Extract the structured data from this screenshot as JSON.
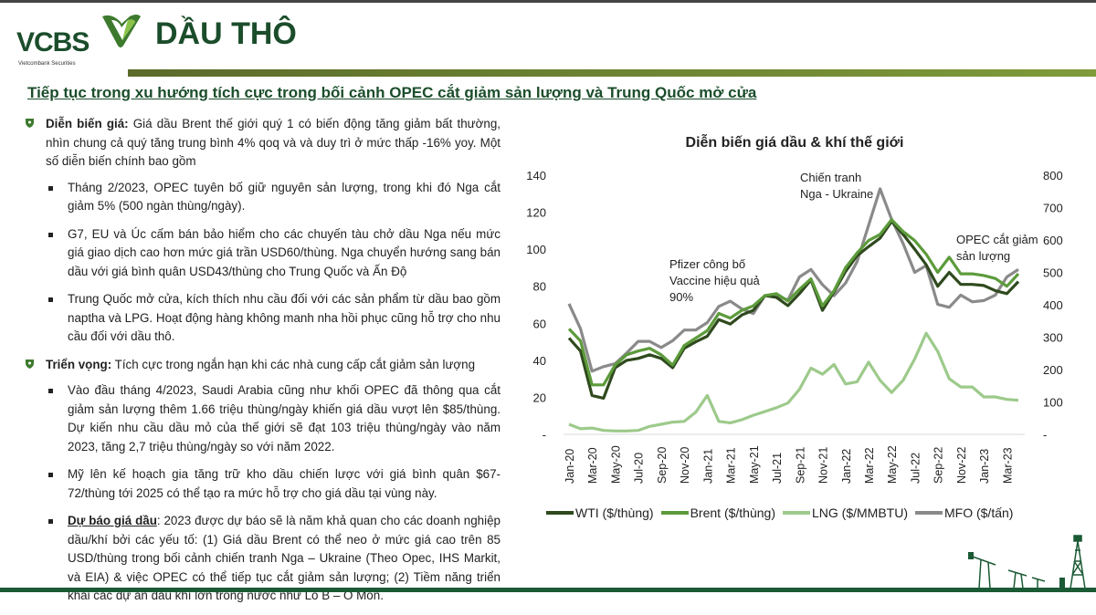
{
  "header": {
    "logo_text": "VCBS",
    "logo_subtext": "Vietcombank Securities",
    "title": "DẦU THÔ",
    "subtitle": "Tiếp tục trong xu hướng tích cực trong bối cảnh OPEC cắt giảm sản lượng và Trung Quốc mở cửa"
  },
  "content": {
    "section1": {
      "label": "Diễn biến giá:",
      "text": " Giá dầu Brent thế giới quý 1 có biến động tăng giảm bất thường, nhìn chung cả quý tăng trung bình 4% qoq và và duy trì ở mức thấp -16% yoy. Một số diễn biến chính bao gồm",
      "bullets": [
        "Tháng 2/2023, OPEC tuyên bố giữ nguyên sản lượng, trong khi đó Nga cắt giảm 5% (500 ngàn thùng/ngày).",
        "G7, EU và Úc cấm bán bảo hiểm cho các chuyến tàu chở dầu Nga nếu mức giá giao dịch cao hơn mức giá trần USD60/thùng. Nga chuyển hướng sang bán dầu với giá bình quân USD43/thùng cho Trung Quốc và Ấn Độ",
        "Trung Quốc mở cửa, kích thích nhu cầu đối với các sản phẩm từ dầu bao gồm naptha và LPG. Hoạt động hàng không manh nha hồi phục cũng hỗ trợ cho nhu cầu đối với dầu thô."
      ]
    },
    "section2": {
      "label": "Triển vọng:",
      "text": " Tích cực trong ngắn hạn khi các nhà cung cấp cắt giảm sản lượng",
      "bullets": [
        "Vào đầu tháng 4/2023, Saudi Arabia cũng như khối OPEC đã thông qua cắt giảm sản lượng thêm 1.66 triệu thùng/ngày khiến giá dầu vượt lên $85/thùng. Dự kiến nhu cầu dầu mỏ của thế giới sẽ đạt 103 triệu thùng/ngày vào năm 2023, tăng 2,7 triệu thùng/ngày so với năm 2022.",
        "Mỹ lên kế hoạch gia tăng trữ kho dầu chiến lược với giá bình quân $67-72/thùng tới 2025 có thể tạo ra mức hỗ trợ cho giá dầu tại vùng này."
      ],
      "forecast_label": "Dự báo giá dầu",
      "forecast_text": ": 2023 được dự báo sẽ là năm khả quan cho các doanh nghiệp dầu/khí bởi các yếu tố: (1) Giá dầu Brent có thể neo ở mức giá cao trên 85 USD/thùng trong bối cảnh chiến tranh Nga – Ukraine (Theo Opec, IHS Markit, và EIA) & việc OPEC có thể tiếp tục cắt giảm sản lượng; (2) Tiềm năng triển khai các dự án dầu khí lớn trong nước như Lô B – Ô Môn."
    }
  },
  "colors": {
    "brand": "#1b4d2b",
    "wti": "#2f4a1e",
    "brent": "#5c9b3b",
    "lng": "#9dca8b",
    "mfo": "#8a8a8a"
  },
  "chart_data": {
    "type": "line",
    "title": "Diễn biến giá dầu & khí thế giới",
    "x_tick_labels": [
      "Jan-20",
      "Mar-20",
      "May-20",
      "Jul-20",
      "Sep-20",
      "Nov-20",
      "Jan-21",
      "Mar-21",
      "May-21",
      "Jul-21",
      "Sep-21",
      "Nov-21",
      "Jan-22",
      "Mar-22",
      "May-22",
      "Jul-22",
      "Sep-22",
      "Nov-22",
      "Jan-23",
      "Mar-23"
    ],
    "x_range": [
      "Jan-20",
      "Apr-23"
    ],
    "left_axis": {
      "ylim": [
        0,
        140
      ],
      "ticks": [
        "-",
        "20",
        "40",
        "60",
        "80",
        "100",
        "120",
        "140"
      ]
    },
    "right_axis": {
      "ylim": [
        0,
        800
      ],
      "ticks": [
        "-",
        "100",
        "200",
        "300",
        "400",
        "500",
        "600",
        "700",
        "800"
      ]
    },
    "legend_position": "bottom",
    "grid": false,
    "series": [
      {
        "name": "WTI ($/thùng)",
        "axis": "left",
        "values": [
          52,
          45,
          21,
          19.5,
          36,
          40,
          41,
          43,
          41,
          36,
          46.5,
          50,
          53,
          62,
          59.6,
          64.5,
          67,
          75,
          74,
          69.5,
          76,
          83.4,
          67,
          77,
          88,
          96.5,
          101.4,
          106,
          115,
          108,
          100,
          91.6,
          80,
          87.5,
          81,
          81,
          80.4,
          77.6,
          76,
          82.5
        ]
      },
      {
        "name": "Brent ($/thùng)",
        "axis": "left",
        "values": [
          57,
          50.5,
          26.7,
          26.7,
          37.4,
          43,
          45,
          46.5,
          43,
          37.4,
          48,
          52,
          56,
          65.3,
          62.8,
          67,
          69.4,
          75,
          76,
          72,
          78.4,
          84,
          69.4,
          77.6,
          90,
          98,
          104.7,
          108,
          116,
          109.6,
          104.7,
          97.3,
          87.5,
          95.7,
          86.7,
          86.7,
          85.8,
          84.2,
          80,
          86.7
        ]
      },
      {
        "name": "LNG ($/MMBTU)",
        "axis": "left",
        "values": [
          5.4,
          3,
          3.4,
          2.1,
          1.8,
          1.8,
          2.1,
          4.3,
          5.4,
          6.6,
          7,
          12,
          21,
          7,
          6.2,
          7.9,
          10.3,
          12.3,
          14.4,
          16.9,
          24.3,
          35.8,
          32.5,
          37.7,
          27.2,
          28.4,
          39,
          29.2,
          22.6,
          29.2,
          40.7,
          54.6,
          44.8,
          30,
          25.6,
          25.6,
          20.2,
          20.2,
          18.9,
          18.4
        ]
      },
      {
        "name": "MFO ($/tấn)",
        "axis": "right",
        "values": [
          403,
          326,
          195,
          209,
          218,
          251,
          287,
          287,
          268,
          289,
          322,
          322,
          345,
          395,
          411,
          387,
          373,
          428,
          428,
          415,
          486,
          509,
          462,
          428,
          467,
          533,
          645,
          758,
          664,
          589,
          500,
          521,
          401,
          392,
          430,
          409,
          413,
          430,
          486,
          509
        ]
      }
    ],
    "annotations": [
      {
        "lines": [
          "Pfizer công bố",
          "Vaccine hiệu quả",
          "90%"
        ]
      },
      {
        "lines": [
          "Chiến tranh",
          "Nga - Ukraine"
        ]
      },
      {
        "lines": [
          "OPEC cắt giảm",
          "sản lượng"
        ]
      }
    ]
  }
}
